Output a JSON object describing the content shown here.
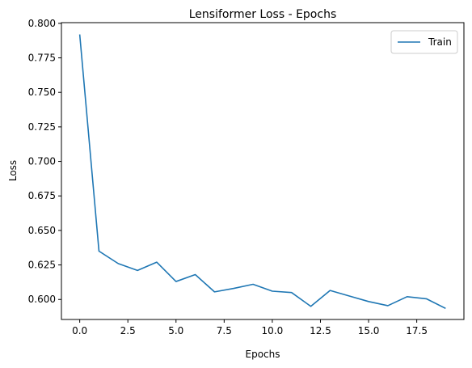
{
  "chart_data": {
    "type": "line",
    "title": "Lensiformer Loss - Epochs",
    "xlabel": "Epochs",
    "ylabel": "Loss",
    "xlim": [
      -0.95,
      19.95
    ],
    "ylim": [
      0.5855,
      0.8005
    ],
    "x_ticks": [
      0.0,
      2.5,
      5.0,
      7.5,
      10.0,
      12.5,
      15.0,
      17.5
    ],
    "x_tick_labels": [
      "0.0",
      "2.5",
      "5.0",
      "7.5",
      "10.0",
      "12.5",
      "15.0",
      "17.5"
    ],
    "y_ticks": [
      0.6,
      0.625,
      0.65,
      0.675,
      0.7,
      0.725,
      0.75,
      0.775,
      0.8
    ],
    "y_tick_labels": [
      "0.600",
      "0.625",
      "0.650",
      "0.675",
      "0.700",
      "0.725",
      "0.750",
      "0.775",
      "0.800"
    ],
    "grid": false,
    "legend_position": "top-right",
    "series": [
      {
        "name": "Train",
        "color": "#1f77b4",
        "x": [
          0,
          1,
          2,
          3,
          4,
          5,
          6,
          7,
          8,
          9,
          10,
          11,
          12,
          13,
          14,
          15,
          16,
          17,
          18,
          19
        ],
        "values": [
          0.792,
          0.635,
          0.626,
          0.621,
          0.627,
          0.613,
          0.618,
          0.6055,
          0.608,
          0.611,
          0.606,
          0.605,
          0.595,
          0.6065,
          0.6025,
          0.5985,
          0.5955,
          0.602,
          0.6005,
          0.5935
        ]
      }
    ]
  }
}
